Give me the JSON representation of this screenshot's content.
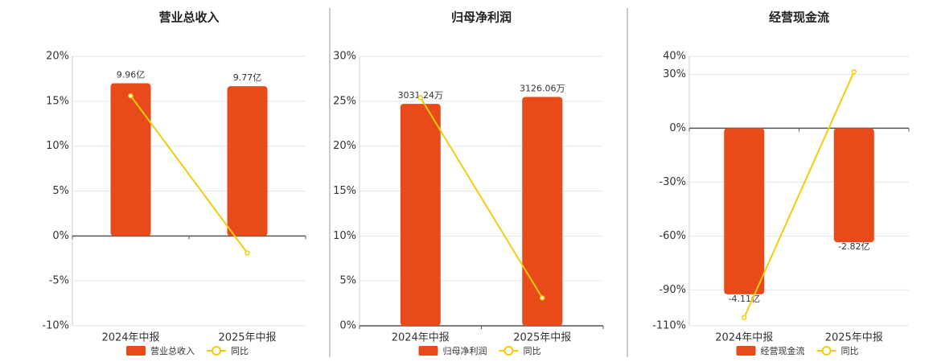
{
  "chart_data": [
    {
      "type": "bar",
      "title": "营业总收入",
      "categories": [
        "2024年中报",
        "2025年中报"
      ],
      "series": [
        {
          "name": "营业总收入",
          "color": "#e84a1a",
          "values": [
            9.96,
            9.77
          ],
          "value_labels": [
            "9.96亿",
            "9.77亿"
          ],
          "axis": "y2"
        },
        {
          "name": "同比",
          "color": "#f2cc0c",
          "values": [
            15.6,
            -1.9
          ],
          "type": "line"
        }
      ],
      "ylim": [
        -10,
        20
      ],
      "yticks": [
        {
          "value": -10,
          "label": "-10%"
        },
        {
          "value": -5,
          "label": "-5%"
        },
        {
          "value": 0,
          "label": "0%"
        },
        {
          "value": 5,
          "label": "5%"
        },
        {
          "value": 10,
          "label": "10%"
        },
        {
          "value": 15,
          "label": "15%"
        },
        {
          "value": 20,
          "label": "20%"
        }
      ],
      "y2lim": [
        -5.86,
        11.72
      ],
      "grid": true
    },
    {
      "type": "bar",
      "title": "归母净利润",
      "categories": [
        "2024年中报",
        "2025年中报"
      ],
      "series": [
        {
          "name": "归母净利润",
          "color": "#e84a1a",
          "values": [
            3031.24,
            3126.06
          ],
          "value_labels": [
            "3031.24万",
            "3126.06万"
          ],
          "axis": "y2"
        },
        {
          "name": "同比",
          "color": "#f2cc0c",
          "values": [
            25.4,
            3.1
          ],
          "type": "line"
        }
      ],
      "ylim": [
        0,
        30
      ],
      "yticks": [
        {
          "value": 0,
          "label": "0%"
        },
        {
          "value": 5,
          "label": "5%"
        },
        {
          "value": 10,
          "label": "10%"
        },
        {
          "value": 15,
          "label": "15%"
        },
        {
          "value": 20,
          "label": "20%"
        },
        {
          "value": 25,
          "label": "25%"
        },
        {
          "value": 30,
          "label": "30%"
        }
      ],
      "y2lim": [
        0,
        3681
      ],
      "grid": true
    },
    {
      "type": "bar",
      "title": "经营现金流",
      "categories": [
        "2024年中报",
        "2025年中报"
      ],
      "series": [
        {
          "name": "经营现金流",
          "color": "#e84a1a",
          "values": [
            -4.11,
            -2.82
          ],
          "value_labels": [
            "-4.11亿",
            "-2.82亿"
          ],
          "axis": "y2"
        },
        {
          "name": "同比",
          "color": "#f2cc0c",
          "values": [
            -105.4,
            31.4
          ],
          "type": "line"
        }
      ],
      "ylim": [
        -110,
        40
      ],
      "yticks": [
        {
          "value": -110,
          "label": "-110%"
        },
        {
          "value": -90,
          "label": "-90%"
        },
        {
          "value": -60,
          "label": "-60%"
        },
        {
          "value": -30,
          "label": "-30%"
        },
        {
          "value": 0,
          "label": "0%"
        },
        {
          "value": 30,
          "label": "30%"
        },
        {
          "value": 40,
          "label": "40%"
        }
      ],
      "y2lim": [
        -4.89,
        1.78
      ],
      "grid": true
    }
  ]
}
